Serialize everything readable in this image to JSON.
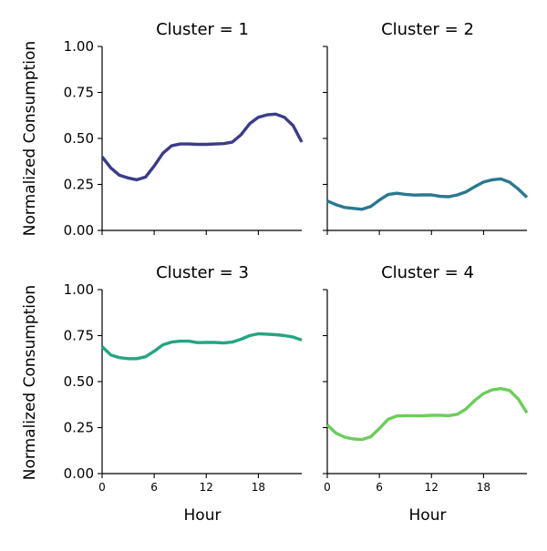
{
  "ylabel": "Normalized Consumption",
  "xlabel": "Hour",
  "chart_data": [
    {
      "type": "line",
      "title": "Cluster = 1",
      "color": "#3b3c87",
      "xlim": [
        0,
        23
      ],
      "ylim": [
        0,
        1
      ],
      "xticks": [
        0,
        6,
        12,
        18
      ],
      "xtick_labels": [],
      "yticks": [
        0,
        0.25,
        0.5,
        0.75,
        1
      ],
      "ytick_labels": [
        "0.00",
        "0.25",
        "0.50",
        "0.75",
        "1.00"
      ],
      "ylabel": "Normalized Consumption",
      "xlabel": "",
      "x": [
        0,
        1,
        2,
        3,
        4,
        5,
        6,
        7,
        8,
        9,
        10,
        11,
        12,
        13,
        14,
        15,
        16,
        17,
        18,
        19,
        20,
        21,
        22,
        23
      ],
      "values": [
        0.4,
        0.34,
        0.3,
        0.285,
        0.275,
        0.29,
        0.35,
        0.42,
        0.46,
        0.47,
        0.47,
        0.468,
        0.468,
        0.47,
        0.472,
        0.48,
        0.52,
        0.58,
        0.615,
        0.628,
        0.632,
        0.615,
        0.57,
        0.48
      ]
    },
    {
      "type": "line",
      "title": "Cluster = 2",
      "color": "#2a7890",
      "xlim": [
        0,
        23
      ],
      "ylim": [
        0,
        1
      ],
      "xticks": [
        0,
        6,
        12,
        18
      ],
      "xtick_labels": [],
      "yticks": [
        0,
        0.25,
        0.5,
        0.75,
        1
      ],
      "ytick_labels": [],
      "ylabel": "",
      "xlabel": "",
      "x": [
        0,
        1,
        2,
        3,
        4,
        5,
        6,
        7,
        8,
        9,
        10,
        11,
        12,
        13,
        14,
        15,
        16,
        17,
        18,
        19,
        20,
        21,
        22,
        23
      ],
      "values": [
        0.16,
        0.14,
        0.125,
        0.12,
        0.115,
        0.13,
        0.165,
        0.195,
        0.202,
        0.196,
        0.192,
        0.193,
        0.193,
        0.185,
        0.183,
        0.193,
        0.21,
        0.238,
        0.263,
        0.275,
        0.28,
        0.262,
        0.225,
        0.18
      ]
    },
    {
      "type": "line",
      "title": "Cluster = 3",
      "color": "#23a583",
      "xlim": [
        0,
        23
      ],
      "ylim": [
        0,
        1
      ],
      "xticks": [
        0,
        6,
        12,
        18
      ],
      "xtick_labels": [
        "0",
        "6",
        "12",
        "18"
      ],
      "yticks": [
        0,
        0.25,
        0.5,
        0.75,
        1
      ],
      "ytick_labels": [
        "0.00",
        "0.25",
        "0.50",
        "0.75",
        "1.00"
      ],
      "ylabel": "Normalized Consumption",
      "xlabel": "Hour",
      "x": [
        0,
        1,
        2,
        3,
        4,
        5,
        6,
        7,
        8,
        9,
        10,
        11,
        12,
        13,
        14,
        15,
        16,
        17,
        18,
        19,
        20,
        21,
        22,
        23
      ],
      "values": [
        0.69,
        0.645,
        0.63,
        0.625,
        0.625,
        0.635,
        0.665,
        0.7,
        0.715,
        0.72,
        0.72,
        0.712,
        0.713,
        0.713,
        0.71,
        0.715,
        0.73,
        0.75,
        0.76,
        0.758,
        0.755,
        0.75,
        0.742,
        0.726
      ]
    },
    {
      "type": "line",
      "title": "Cluster = 4",
      "color": "#6ccd5a",
      "xlim": [
        0,
        23
      ],
      "ylim": [
        0,
        1
      ],
      "xticks": [
        0,
        6,
        12,
        18
      ],
      "xtick_labels": [
        "0",
        "6",
        "12",
        "18"
      ],
      "yticks": [
        0,
        0.25,
        0.5,
        0.75,
        1
      ],
      "ytick_labels": [],
      "ylabel": "",
      "xlabel": "Hour",
      "x": [
        0,
        1,
        2,
        3,
        4,
        5,
        6,
        7,
        8,
        9,
        10,
        11,
        12,
        13,
        14,
        15,
        16,
        17,
        18,
        19,
        20,
        21,
        22,
        23
      ],
      "values": [
        0.265,
        0.22,
        0.198,
        0.188,
        0.185,
        0.2,
        0.245,
        0.295,
        0.313,
        0.315,
        0.315,
        0.314,
        0.317,
        0.317,
        0.315,
        0.323,
        0.352,
        0.398,
        0.435,
        0.455,
        0.462,
        0.452,
        0.405,
        0.33
      ]
    }
  ]
}
